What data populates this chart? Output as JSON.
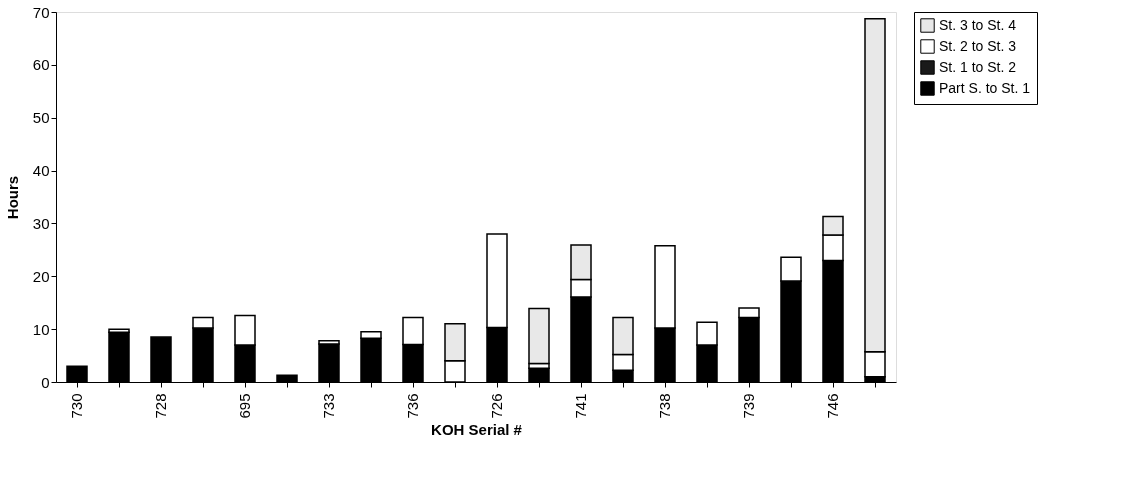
{
  "chart_data": {
    "type": "bar",
    "stacked": true,
    "xlabel": "KOH Serial #",
    "ylabel": "Hours",
    "categories": [
      "730",
      null,
      "728",
      null,
      "695",
      null,
      "733",
      null,
      "736",
      null,
      "726",
      null,
      "741",
      null,
      "738",
      null,
      "739",
      null,
      "746",
      null
    ],
    "series": [
      {
        "name": "Part S. to St. 1",
        "color": "#000000",
        "values": [
          3,
          9.4,
          8.5,
          10.2,
          7,
          1.3,
          7.2,
          8.3,
          7.1,
          0,
          10.3,
          2.6,
          16.1,
          2.2,
          10.2,
          7,
          12.2,
          19.1,
          23,
          1
        ]
      },
      {
        "name": "St. 1 to St. 2",
        "color": "#1a1a1a",
        "values": [
          0,
          0,
          0,
          0,
          0,
          0,
          0,
          0,
          0,
          0,
          0,
          0,
          0,
          0,
          0,
          0,
          0,
          0,
          0,
          0
        ]
      },
      {
        "name": "St. 2 to St. 3",
        "color": "#ffffff",
        "values": [
          0,
          0.6,
          0,
          2,
          5.6,
          0,
          0.6,
          1.2,
          5.1,
          4,
          17.7,
          0.9,
          3.3,
          3,
          15.6,
          4.3,
          1.8,
          4.5,
          4.8,
          4.7
        ]
      },
      {
        "name": "St. 3 to St. 4",
        "color": "#e8e8e8",
        "values": [
          0,
          0,
          0,
          0,
          0,
          0,
          0,
          0,
          0,
          7,
          0,
          10.4,
          6.5,
          7,
          0,
          0,
          0,
          0,
          3.5,
          63
        ]
      }
    ],
    "ylim": [
      0,
      70
    ],
    "yticks": [
      0,
      10,
      20,
      30,
      40,
      50,
      60,
      70
    ],
    "grid": false,
    "legend": "right"
  }
}
